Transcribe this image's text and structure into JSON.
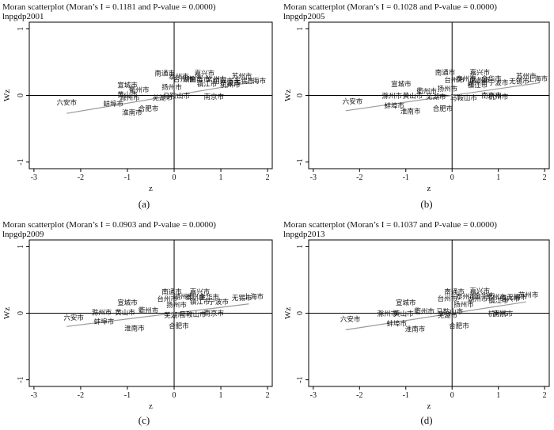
{
  "captions": [
    "(a)",
    "(b)",
    "(c)",
    "(d)"
  ],
  "chart_data": [
    {
      "type": "scatter",
      "title": "Moran scatterplot (Moran’s I = 0.1181 and P-value = 0.0000)",
      "subtitle": "lnpgdp2001",
      "xlabel": "z",
      "ylabel": "Wz",
      "xlim": [
        -3.1,
        2.1
      ],
      "ylim": [
        -1.1,
        1.1
      ],
      "xticks": [
        "-3",
        "-2",
        "-1",
        "0",
        "1",
        "2"
      ],
      "yticks": [
        "-1",
        "0",
        "1"
      ],
      "fit_line": {
        "x": [
          -2.3,
          1.6
        ],
        "y": [
          -0.27,
          0.19
        ]
      },
      "points": [
        {
          "label": "六安市",
          "x": -2.3,
          "y": -0.12
        },
        {
          "label": "宣城市",
          "x": -1.0,
          "y": 0.14
        },
        {
          "label": "衢州市",
          "x": -0.75,
          "y": 0.07
        },
        {
          "label": "黄山市",
          "x": -1.0,
          "y": 0.0
        },
        {
          "label": "滁州市",
          "x": -0.95,
          "y": -0.05
        },
        {
          "label": "蚌埠市",
          "x": -1.3,
          "y": -0.14
        },
        {
          "label": "淮南市",
          "x": -0.9,
          "y": -0.27
        },
        {
          "label": "合肥市",
          "x": -0.55,
          "y": -0.21
        },
        {
          "label": "芜湖市",
          "x": -0.25,
          "y": -0.05
        },
        {
          "label": "马鞍山市",
          "x": 0.05,
          "y": -0.02
        },
        {
          "label": "扬州市",
          "x": -0.05,
          "y": 0.11
        },
        {
          "label": "南通市",
          "x": -0.2,
          "y": 0.32
        },
        {
          "label": "泰州市",
          "x": 0.1,
          "y": 0.27
        },
        {
          "label": "台州市",
          "x": 0.2,
          "y": 0.23
        },
        {
          "label": "湖州市",
          "x": 0.4,
          "y": 0.23
        },
        {
          "label": "嘉兴市",
          "x": 0.65,
          "y": 0.32
        },
        {
          "label": "金华市",
          "x": 0.55,
          "y": 0.23
        },
        {
          "label": "常州市",
          "x": 0.9,
          "y": 0.23
        },
        {
          "label": "镇江市",
          "x": 0.7,
          "y": 0.16
        },
        {
          "label": "宁波市",
          "x": 1.2,
          "y": 0.18
        },
        {
          "label": "绍兴市",
          "x": 1.05,
          "y": 0.21
        },
        {
          "label": "杭州市",
          "x": 1.2,
          "y": 0.15
        },
        {
          "label": "南京市",
          "x": 0.85,
          "y": -0.03
        },
        {
          "label": "苏州市",
          "x": 1.45,
          "y": 0.28
        },
        {
          "label": "无锡市",
          "x": 1.5,
          "y": 0.21
        },
        {
          "label": "上海市",
          "x": 1.75,
          "y": 0.21
        }
      ]
    },
    {
      "type": "scatter",
      "title": "Moran scatterplot (Moran’s I = 0.1028 and P-value = 0.0000)",
      "subtitle": "lnpgdp2005",
      "xlabel": "z",
      "ylabel": "Wz",
      "xlim": [
        -3.1,
        2.1
      ],
      "ylim": [
        -1.1,
        1.1
      ],
      "xticks": [
        "-3",
        "-2",
        "-1",
        "0",
        "1",
        "2"
      ],
      "yticks": [
        "-1",
        "0",
        "1"
      ],
      "fit_line": {
        "x": [
          -2.3,
          1.9
        ],
        "y": [
          -0.23,
          0.19
        ]
      },
      "points": [
        {
          "label": "六安市",
          "x": -2.15,
          "y": -0.1
        },
        {
          "label": "宣城市",
          "x": -1.1,
          "y": 0.16
        },
        {
          "label": "衢州市",
          "x": -0.55,
          "y": 0.05
        },
        {
          "label": "滁州市",
          "x": -1.3,
          "y": -0.02
        },
        {
          "label": "黄山市",
          "x": -0.85,
          "y": -0.02
        },
        {
          "label": "蚌埠市",
          "x": -1.25,
          "y": -0.17
        },
        {
          "label": "淮南市",
          "x": -0.9,
          "y": -0.25
        },
        {
          "label": "芜湖市",
          "x": -0.35,
          "y": -0.03
        },
        {
          "label": "合肥市",
          "x": -0.2,
          "y": -0.21
        },
        {
          "label": "扬州市",
          "x": -0.1,
          "y": 0.09
        },
        {
          "label": "南通市",
          "x": -0.15,
          "y": 0.33
        },
        {
          "label": "台州市",
          "x": 0.05,
          "y": 0.22
        },
        {
          "label": "泰州市",
          "x": 0.3,
          "y": 0.24
        },
        {
          "label": "湖州市",
          "x": 0.55,
          "y": 0.18
        },
        {
          "label": "嘉兴市",
          "x": 0.6,
          "y": 0.33
        },
        {
          "label": "金华市",
          "x": 0.85,
          "y": 0.24
        },
        {
          "label": "常州市",
          "x": 0.6,
          "y": 0.22
        },
        {
          "label": "镇江市",
          "x": 0.55,
          "y": 0.14
        },
        {
          "label": "宁波市",
          "x": 1.0,
          "y": 0.18
        },
        {
          "label": "马鞍山市",
          "x": 0.25,
          "y": -0.05
        },
        {
          "label": "杭州市",
          "x": 1.0,
          "y": -0.03
        },
        {
          "label": "南京市",
          "x": 0.85,
          "y": -0.01
        },
        {
          "label": "苏州市",
          "x": 1.6,
          "y": 0.28
        },
        {
          "label": "无锡市",
          "x": 1.45,
          "y": 0.2
        },
        {
          "label": "上海市",
          "x": 1.85,
          "y": 0.24
        }
      ]
    },
    {
      "type": "scatter",
      "title": "Moran scatterplot (Moran’s I = 0.0903 and P-value = 0.0000)",
      "subtitle": "lnpgdp2009",
      "xlabel": "z",
      "ylabel": "Wz",
      "xlim": [
        -3.1,
        2.1
      ],
      "ylim": [
        -1.1,
        1.1
      ],
      "xticks": [
        "-3",
        "-2",
        "-1",
        "0",
        "1",
        "2"
      ],
      "yticks": [
        "-1",
        "0",
        "1"
      ],
      "fit_line": {
        "x": [
          -2.3,
          1.6
        ],
        "y": [
          -0.2,
          0.14
        ]
      },
      "points": [
        {
          "label": "六安市",
          "x": -2.15,
          "y": -0.08
        },
        {
          "label": "宣城市",
          "x": -1.0,
          "y": 0.15
        },
        {
          "label": "滁州市",
          "x": -1.55,
          "y": 0.0
        },
        {
          "label": "黄山市",
          "x": -1.05,
          "y": 0.0
        },
        {
          "label": "衢州市",
          "x": -0.55,
          "y": 0.03
        },
        {
          "label": "蚌埠市",
          "x": -1.5,
          "y": -0.14
        },
        {
          "label": "淮南市",
          "x": -0.85,
          "y": -0.24
        },
        {
          "label": "芜湖市",
          "x": 0.0,
          "y": -0.04
        },
        {
          "label": "合肥市",
          "x": 0.1,
          "y": -0.2
        },
        {
          "label": "马鞍山市",
          "x": 0.4,
          "y": -0.03
        },
        {
          "label": "扬州市",
          "x": 0.05,
          "y": 0.11
        },
        {
          "label": "南通市",
          "x": -0.05,
          "y": 0.31
        },
        {
          "label": "台州市",
          "x": -0.15,
          "y": 0.2
        },
        {
          "label": "湖州市",
          "x": 0.2,
          "y": 0.24
        },
        {
          "label": "泰州市",
          "x": 0.45,
          "y": 0.23
        },
        {
          "label": "嘉兴市",
          "x": 0.55,
          "y": 0.31
        },
        {
          "label": "金华市",
          "x": 0.75,
          "y": 0.23
        },
        {
          "label": "镇江市",
          "x": 0.55,
          "y": 0.16
        },
        {
          "label": "宁波市",
          "x": 0.95,
          "y": 0.16
        },
        {
          "label": "南京市",
          "x": 0.85,
          "y": -0.01
        },
        {
          "label": "无锡市",
          "x": 1.45,
          "y": 0.22
        },
        {
          "label": "上海市",
          "x": 1.7,
          "y": 0.24
        }
      ]
    },
    {
      "type": "scatter",
      "title": "Moran scatterplot (Moran’s I = 0.1037 and P-value = 0.0000)",
      "subtitle": "lnpgdp2013",
      "xlabel": "z",
      "ylabel": "Wz",
      "xlim": [
        -3.1,
        2.1
      ],
      "ylim": [
        -1.1,
        1.1
      ],
      "xticks": [
        "-3",
        "-2",
        "-1",
        "0",
        "1",
        "2"
      ],
      "yticks": [
        "-1",
        "0",
        "1"
      ],
      "fit_line": {
        "x": [
          -2.3,
          1.6
        ],
        "y": [
          -0.25,
          0.17
        ]
      },
      "points": [
        {
          "label": "六安市",
          "x": -2.2,
          "y": -0.1
        },
        {
          "label": "宣城市",
          "x": -1.0,
          "y": 0.15
        },
        {
          "label": "滁州市",
          "x": -1.4,
          "y": -0.02
        },
        {
          "label": "黄山市",
          "x": -1.05,
          "y": -0.02
        },
        {
          "label": "衢州市",
          "x": -0.6,
          "y": 0.02
        },
        {
          "label": "蚌埠市",
          "x": -1.2,
          "y": -0.17
        },
        {
          "label": "淮南市",
          "x": -0.8,
          "y": -0.25
        },
        {
          "label": "芜湖市",
          "x": -0.1,
          "y": -0.04
        },
        {
          "label": "马鞍山市",
          "x": -0.05,
          "y": 0.01
        },
        {
          "label": "合肥市",
          "x": 0.15,
          "y": -0.2
        },
        {
          "label": "扬州市",
          "x": 0.25,
          "y": 0.12
        },
        {
          "label": "南通市",
          "x": 0.05,
          "y": 0.31
        },
        {
          "label": "台州市",
          "x": -0.1,
          "y": 0.21
        },
        {
          "label": "泰州市",
          "x": 0.3,
          "y": 0.24
        },
        {
          "label": "嘉兴市",
          "x": 0.6,
          "y": 0.32
        },
        {
          "label": "湖州市",
          "x": 0.55,
          "y": 0.2
        },
        {
          "label": "金华市",
          "x": 0.7,
          "y": 0.25
        },
        {
          "label": "常州市",
          "x": 0.95,
          "y": 0.23
        },
        {
          "label": "镇江市",
          "x": 1.0,
          "y": 0.18
        },
        {
          "label": "杭州市",
          "x": 1.0,
          "y": -0.02
        },
        {
          "label": "南京市",
          "x": 1.1,
          "y": -0.02
        },
        {
          "label": "绍兴市",
          "x": 1.25,
          "y": 0.21
        },
        {
          "label": "苏州市",
          "x": 1.65,
          "y": 0.26
        },
        {
          "label": "无锡市",
          "x": 1.4,
          "y": 0.23
        }
      ]
    }
  ]
}
